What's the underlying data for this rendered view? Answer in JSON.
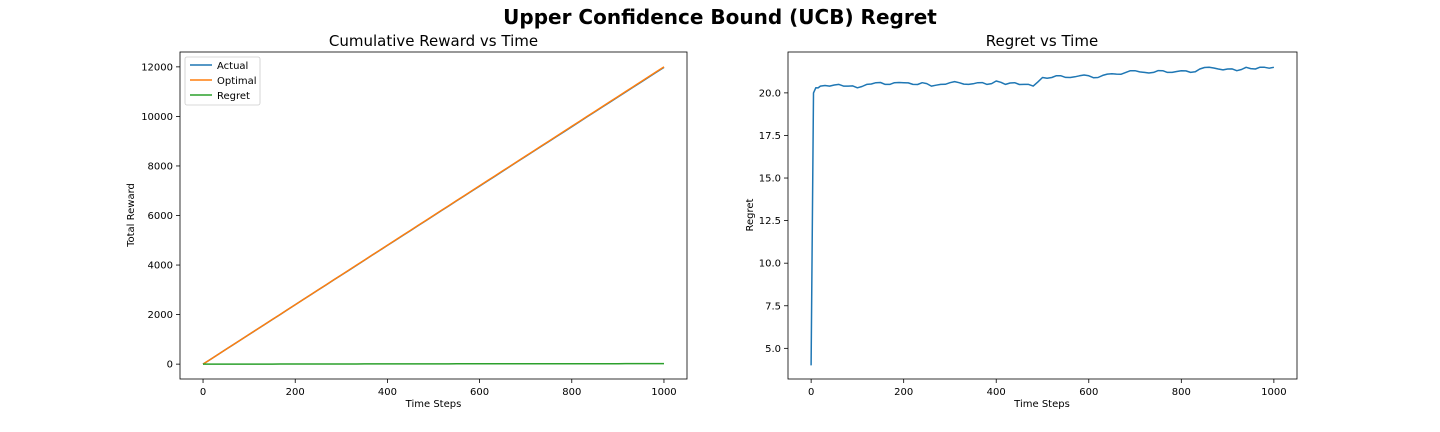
{
  "figure_title": "Upper Confidence Bound (UCB) Regret",
  "chart_data": [
    {
      "type": "line",
      "title": "Cumulative Reward vs Time",
      "xlabel": "Time Steps",
      "ylabel": "Total Reward",
      "xlim": [
        -50,
        1050
      ],
      "ylim": [
        -600,
        12600
      ],
      "xticks": [
        0,
        200,
        400,
        600,
        800,
        1000
      ],
      "yticks": [
        0,
        2000,
        4000,
        6000,
        8000,
        10000,
        12000
      ],
      "xtick_labels": [
        "0",
        "200",
        "400",
        "600",
        "800",
        "1000"
      ],
      "ytick_labels": [
        "0",
        "2000",
        "4000",
        "6000",
        "8000",
        "10000",
        "12000"
      ],
      "grid": false,
      "legend_position": "upper-left",
      "series": [
        {
          "name": "Actual",
          "color": "#1f77b4",
          "x": [
            0,
            1000
          ],
          "y": [
            0,
            11980
          ]
        },
        {
          "name": "Optimal",
          "color": "#ff7f0e",
          "x": [
            0,
            1000
          ],
          "y": [
            0,
            12000
          ]
        },
        {
          "name": "Regret",
          "color": "#2ca02c",
          "x": [
            0,
            1000
          ],
          "y": [
            0,
            21.5
          ]
        }
      ]
    },
    {
      "type": "line",
      "title": "Regret vs Time",
      "xlabel": "Time Steps",
      "ylabel": "Regret",
      "xlim": [
        -50,
        1050
      ],
      "ylim": [
        3.2,
        22.4
      ],
      "xticks": [
        0,
        200,
        400,
        600,
        800,
        1000
      ],
      "yticks": [
        5.0,
        7.5,
        10.0,
        12.5,
        15.0,
        17.5,
        20.0
      ],
      "xtick_labels": [
        "0",
        "200",
        "400",
        "600",
        "800",
        "1000"
      ],
      "ytick_labels": [
        "5.0",
        "7.5",
        "10.0",
        "12.5",
        "15.0",
        "17.5",
        "20.0"
      ],
      "grid": false,
      "series": [
        {
          "name": "",
          "color": "#1f77b4",
          "x": [
            0,
            5,
            10,
            20,
            40,
            60,
            80,
            100,
            120,
            140,
            160,
            180,
            200,
            220,
            240,
            260,
            280,
            300,
            320,
            340,
            360,
            380,
            400,
            420,
            440,
            460,
            480,
            500,
            520,
            540,
            560,
            580,
            600,
            620,
            640,
            660,
            680,
            700,
            720,
            740,
            760,
            780,
            800,
            820,
            840,
            860,
            880,
            900,
            920,
            940,
            960,
            980,
            1000
          ],
          "y": [
            4.0,
            20.0,
            20.3,
            20.4,
            20.4,
            20.5,
            20.4,
            20.3,
            20.5,
            20.6,
            20.5,
            20.6,
            20.6,
            20.5,
            20.6,
            20.4,
            20.5,
            20.6,
            20.6,
            20.5,
            20.6,
            20.5,
            20.7,
            20.5,
            20.6,
            20.5,
            20.4,
            20.9,
            20.9,
            21.0,
            20.9,
            21.0,
            21.0,
            20.9,
            21.1,
            21.1,
            21.2,
            21.3,
            21.2,
            21.2,
            21.3,
            21.2,
            21.3,
            21.2,
            21.4,
            21.5,
            21.4,
            21.4,
            21.3,
            21.5,
            21.4,
            21.5,
            21.5
          ]
        }
      ]
    }
  ]
}
